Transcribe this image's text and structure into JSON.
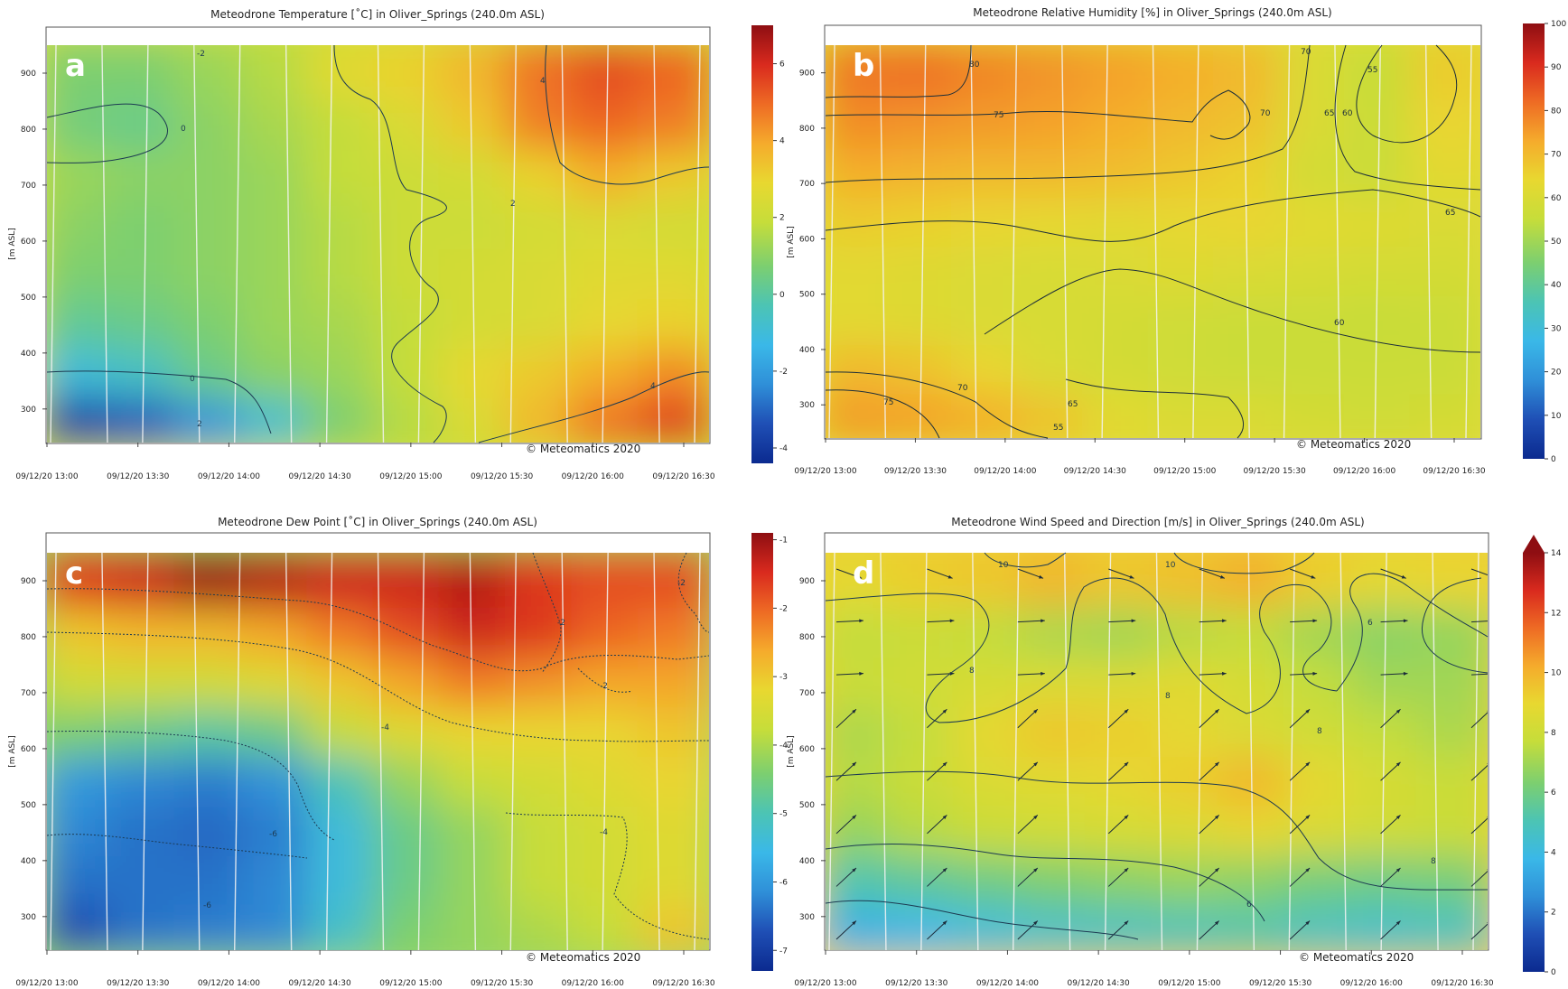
{
  "copyright": "© Meteomatics 2020",
  "time_ticks": [
    "09/12/20 13:00",
    "09/12/20 13:30",
    "09/12/20 14:00",
    "09/12/20 14:30",
    "09/12/20 15:00",
    "09/12/20 15:30",
    "09/12/20 16:00",
    "09/12/20 16:30"
  ],
  "height_ticks": [
    "300",
    "400",
    "500",
    "600",
    "700",
    "800",
    "900"
  ],
  "ylabel": "[m ASL]",
  "colormap": [
    "#0b2a8f",
    "#1f4fb5",
    "#2f8fd8",
    "#3ab8e8",
    "#4cc4b4",
    "#7ccf70",
    "#c6dd3a",
    "#e8d830",
    "#f5ab2c",
    "#ee6b24",
    "#d92a1e",
    "#8e0e12"
  ],
  "chart_data": [
    {
      "id": "a",
      "type": "heatmap",
      "panel_letter": "a",
      "title": "Meteodrone Temperature [˚C] in Oliver_Springs (240.0m ASL)",
      "x_range": [
        "09/12/20 13:00",
        "09/12/20 16:30"
      ],
      "ylim": [
        240,
        950
      ],
      "value_range": [
        -4.4,
        7.0
      ],
      "colorbar_ticks": [
        "6",
        "4",
        "2",
        "0",
        "-2",
        "-4"
      ],
      "contour_labels": [
        "-2",
        "0",
        "0",
        "2",
        "2",
        "4",
        "4"
      ],
      "grid": [
        [
          -3.8,
          -3.2,
          -2.2,
          -0.8,
          0.8,
          1.6,
          2.4,
          3.6,
          4.8,
          5.6
        ],
        [
          -1.0,
          -0.6,
          0.4,
          1.0,
          1.2,
          1.8,
          2.8,
          3.2,
          3.8,
          4.4
        ],
        [
          0.2,
          0.4,
          0.8,
          1.2,
          1.4,
          1.8,
          2.2,
          2.4,
          2.8,
          3.0
        ],
        [
          0.8,
          0.8,
          1.0,
          1.2,
          1.6,
          2.0,
          2.2,
          2.4,
          2.6,
          2.6
        ],
        [
          1.0,
          0.8,
          1.0,
          1.2,
          1.6,
          2.0,
          2.0,
          2.2,
          2.4,
          2.2
        ],
        [
          1.2,
          1.0,
          1.0,
          1.2,
          1.8,
          2.0,
          2.2,
          3.0,
          3.8,
          3.2
        ],
        [
          0.6,
          0.4,
          1.0,
          1.4,
          1.8,
          2.4,
          3.2,
          4.6,
          5.0,
          4.6
        ],
        [
          0.8,
          0.8,
          1.2,
          1.6,
          2.6,
          3.0,
          3.6,
          4.8,
          5.4,
          5.0
        ]
      ]
    },
    {
      "id": "b",
      "type": "heatmap",
      "panel_letter": "b",
      "title": "Meteodrone Relative Humidity [%] in Oliver_Springs (240.0m ASL)",
      "x_range": [
        "09/12/20 13:00",
        "09/12/20 16:30"
      ],
      "ylim": [
        240,
        950
      ],
      "value_range": [
        0,
        100
      ],
      "colorbar_ticks": [
        "100",
        "90",
        "80",
        "70",
        "60",
        "50",
        "40",
        "30",
        "20",
        "10",
        "0"
      ],
      "contour_labels": [
        "80",
        "75",
        "70",
        "70",
        "65",
        "60",
        "55",
        "75",
        "70",
        "65",
        "60",
        "55",
        "65"
      ],
      "grid": [
        [
          75,
          74,
          72,
          68,
          62,
          60,
          60,
          58,
          57,
          58
        ],
        [
          70,
          68,
          64,
          60,
          58,
          57,
          56,
          56,
          56,
          56
        ],
        [
          62,
          61,
          60,
          59,
          58,
          57,
          56,
          56,
          55,
          56
        ],
        [
          62,
          61,
          60,
          59,
          60,
          61,
          60,
          59,
          58,
          58
        ],
        [
          66,
          65,
          64,
          63,
          62,
          63,
          64,
          62,
          61,
          60
        ],
        [
          72,
          71,
          70,
          70,
          69,
          67,
          65,
          58,
          56,
          62
        ],
        [
          77,
          76,
          75,
          74,
          72,
          70,
          68,
          60,
          56,
          64
        ],
        [
          80,
          81,
          78,
          76,
          74,
          72,
          70,
          60,
          55,
          66
        ]
      ]
    },
    {
      "id": "c",
      "type": "heatmap",
      "panel_letter": "c",
      "title": "Meteodrone Dew Point [˚C] in Oliver_Springs (240.0m ASL)",
      "x_range": [
        "09/12/20 13:00",
        "09/12/20 16:30"
      ],
      "ylim": [
        240,
        950
      ],
      "value_range": [
        -7.3,
        -0.9
      ],
      "colorbar_ticks": [
        "-1",
        "-2",
        "-3",
        "-4",
        "-5",
        "-6",
        "-7"
      ],
      "contour_labels": [
        "-2",
        "-2",
        "-2",
        "-4",
        "-4",
        "-6",
        "-6"
      ],
      "grid": [
        [
          -6.8,
          -6.4,
          -6.3,
          -6.2,
          -5.2,
          -4.4,
          -4.2,
          -4.0,
          -3.8,
          -3.0
        ],
        [
          -6.4,
          -6.4,
          -6.4,
          -6.2,
          -5.4,
          -4.6,
          -4.2,
          -3.8,
          -3.6,
          -3.4
        ],
        [
          -6.2,
          -6.4,
          -6.5,
          -6.3,
          -5.4,
          -4.6,
          -4.2,
          -3.8,
          -3.6,
          -3.4
        ],
        [
          -6.0,
          -6.2,
          -6.3,
          -6.1,
          -5.0,
          -4.2,
          -3.8,
          -3.6,
          -3.4,
          -3.2
        ],
        [
          -4.4,
          -4.6,
          -4.8,
          -4.6,
          -3.8,
          -3.4,
          -3.2,
          -3.2,
          -3.2,
          -3.0
        ],
        [
          -3.6,
          -3.6,
          -3.6,
          -3.4,
          -3.0,
          -2.6,
          -2.2,
          -2.4,
          -2.6,
          -2.6
        ],
        [
          -3.0,
          -2.8,
          -2.8,
          -2.6,
          -2.2,
          -1.8,
          -1.4,
          -1.6,
          -2.0,
          -2.2
        ],
        [
          -1.6,
          -1.4,
          -1.0,
          -1.2,
          -1.4,
          -1.4,
          -1.2,
          -1.6,
          -1.8,
          -1.8
        ]
      ]
    },
    {
      "id": "d",
      "type": "heatmap",
      "panel_letter": "d",
      "title": "Meteodrone Wind Speed and Direction [m/s] in Oliver_Springs (240.0m ASL)",
      "x_range": [
        "09/12/20 13:00",
        "09/12/20 16:30"
      ],
      "ylim": [
        240,
        950
      ],
      "value_range": [
        0,
        14
      ],
      "colorbar_ticks": [
        "14",
        "12",
        "10",
        "8",
        "6",
        "4",
        "2",
        "0"
      ],
      "contour_labels": [
        "10",
        "10",
        "8",
        "8",
        "8",
        "6",
        "6",
        "8"
      ],
      "grid": [
        [
          3.6,
          3.8,
          4.2,
          4.6,
          4.8,
          5.0,
          5.2,
          4.8,
          4.6,
          4.8
        ],
        [
          5.2,
          5.6,
          6.0,
          6.4,
          6.6,
          6.8,
          6.6,
          6.2,
          6.0,
          6.2
        ],
        [
          6.8,
          7.4,
          7.8,
          8.0,
          8.2,
          8.4,
          8.8,
          8.4,
          8.0,
          7.8
        ],
        [
          7.4,
          7.8,
          8.4,
          8.6,
          8.8,
          9.2,
          9.8,
          8.8,
          8.2,
          7.8
        ],
        [
          7.2,
          7.6,
          8.8,
          9.4,
          9.2,
          8.8,
          8.4,
          8.0,
          7.6,
          7.2
        ],
        [
          7.8,
          8.0,
          8.2,
          8.4,
          8.4,
          8.6,
          8.2,
          7.6,
          7.0,
          7.0
        ],
        [
          7.6,
          7.8,
          7.6,
          7.2,
          7.0,
          7.4,
          7.6,
          7.0,
          6.6,
          6.8
        ],
        [
          8.8,
          9.2,
          9.4,
          9.8,
          9.4,
          9.6,
          10.0,
          9.2,
          8.8,
          9.0
        ]
      ]
    }
  ]
}
